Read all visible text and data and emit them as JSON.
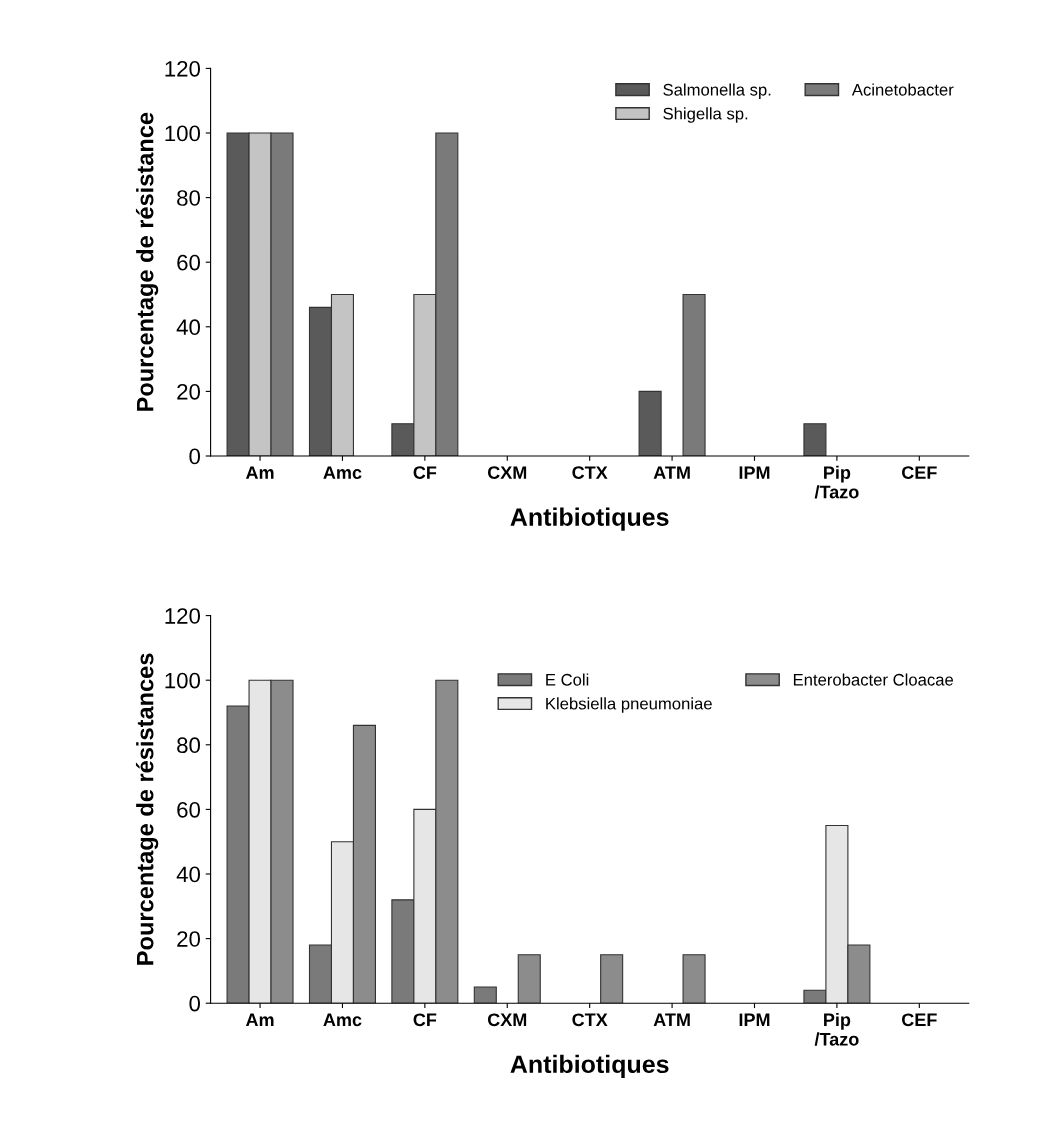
{
  "chart_data": [
    {
      "type": "bar",
      "xlabel": "Antibiotiques",
      "ylabel": "Pourcentage de résistance",
      "categories": [
        "Am",
        "Amc",
        "CF",
        "CXM",
        "CTX",
        "ATM",
        "IPM",
        "Pip\n/Tazo",
        "CEF"
      ],
      "series": [
        {
          "name": "Salmonella sp.",
          "color": "#5a5a5a",
          "values": [
            100,
            46,
            10,
            null,
            null,
            20,
            null,
            10,
            null
          ]
        },
        {
          "name": "Shigella sp.",
          "color": "#c4c4c4",
          "values": [
            100,
            50,
            50,
            null,
            null,
            null,
            null,
            null,
            null
          ]
        },
        {
          "name": "Acinetobacter",
          "color": "#7a7a7a",
          "values": [
            100,
            null,
            100,
            null,
            null,
            50,
            null,
            null,
            null
          ]
        }
      ],
      "ylim": [
        0,
        120
      ],
      "yticks": [
        0,
        20,
        40,
        60,
        80,
        100,
        120
      ],
      "legend": "top right",
      "grid": false
    },
    {
      "type": "bar",
      "xlabel": "Antibiotiques",
      "ylabel": "Pourcentage de résistances",
      "categories": [
        "Am",
        "Amc",
        "CF",
        "CXM",
        "CTX",
        "ATM",
        "IPM",
        "Pip\n/Tazo",
        "CEF"
      ],
      "series": [
        {
          "name": "E Coli",
          "color": "#7a7a7a",
          "values": [
            92,
            18,
            32,
            5,
            null,
            null,
            null,
            4,
            null
          ]
        },
        {
          "name": "Klebsiella pneumoniae",
          "color": "#e6e6e6",
          "values": [
            100,
            50,
            60,
            null,
            null,
            null,
            null,
            55,
            null
          ]
        },
        {
          "name": "Enterobacter Cloacae",
          "color": "#8c8c8c",
          "values": [
            100,
            86,
            100,
            15,
            15,
            15,
            null,
            18,
            null
          ]
        }
      ],
      "ylim": [
        0,
        120
      ],
      "yticks": [
        0,
        20,
        40,
        60,
        80,
        100,
        120
      ],
      "legend": "right",
      "grid": false
    }
  ]
}
